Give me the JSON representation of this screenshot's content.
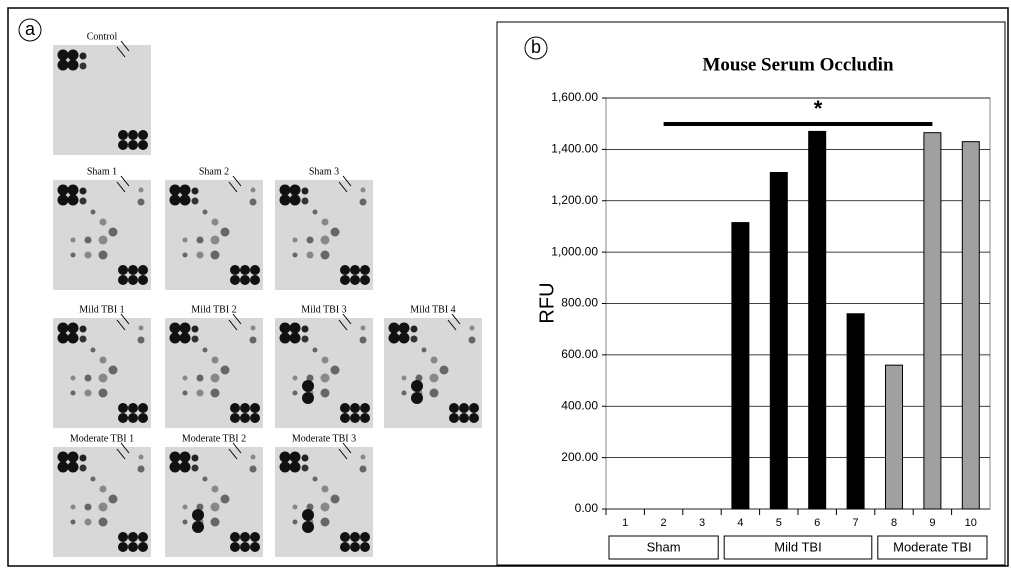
{
  "panel_a": {
    "label": "a",
    "blots": [
      "Control",
      "Sham 1",
      "Sham 2",
      "Sham 3",
      "Mild TBI 1",
      "Mild TBI 2",
      "Mild TBI 3",
      "Mild TBI 4",
      "Moderate TBI 1",
      "Moderate TBI 2",
      "Moderate TBI 3"
    ]
  },
  "chart_data": {
    "type": "bar",
    "panel_label": "b",
    "title": "Mouse Serum Occludin",
    "y_label": "RFU",
    "categories": [
      "1",
      "2",
      "3",
      "4",
      "5",
      "6",
      "7",
      "8",
      "9",
      "10"
    ],
    "values": [
      0,
      0,
      0,
      1115,
      1310,
      1470,
      760,
      560,
      1465,
      1430
    ],
    "colors": [
      "#000000",
      "#000000",
      "#000000",
      "#000000",
      "#000000",
      "#000000",
      "#000000",
      "#a0a0a0",
      "#a0a0a0",
      "#a0a0a0"
    ],
    "groups": [
      "Sham",
      "Mild TBI",
      "Moderate TBI"
    ],
    "annotation": "*",
    "ylim": [
      0,
      1600
    ],
    "yticks": [
      {
        "value": 0,
        "label": "0.00"
      },
      {
        "value": 200,
        "label": "200.00"
      },
      {
        "value": 400,
        "label": "400.00"
      },
      {
        "value": 600,
        "label": "600.00"
      },
      {
        "value": 800,
        "label": "800.00"
      },
      {
        "value": 1000,
        "label": "1,000.00"
      },
      {
        "value": 1200,
        "label": "1,200.00"
      },
      {
        "value": 1400,
        "label": "1,400.00"
      },
      {
        "value": 1600,
        "label": "1,600.00"
      }
    ],
    "grid": true
  }
}
